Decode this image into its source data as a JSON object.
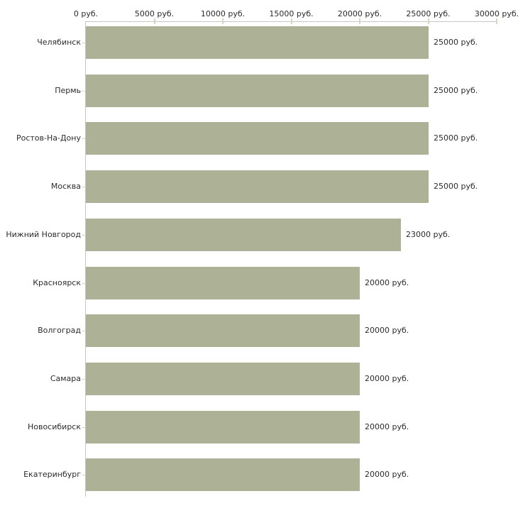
{
  "chart_data": {
    "type": "bar",
    "orientation": "horizontal",
    "title": "",
    "xlabel": "",
    "ylabel": "",
    "unit": "руб.",
    "xlim": [
      0,
      30000
    ],
    "grid": false,
    "legend": "none",
    "x_tick_values": [
      0,
      5000,
      10000,
      15000,
      20000,
      25000,
      30000
    ],
    "x_tick_labels": [
      "0 руб.",
      "5000 руб.",
      "10000 руб.",
      "15000 руб.",
      "20000 руб.",
      "25000 руб.",
      "30000 руб."
    ],
    "categories": [
      "Челябинск",
      "Пермь",
      "Ростов-На-Дону",
      "Москва",
      "Нижний Новгород",
      "Красноярск",
      "Волгоград",
      "Самара",
      "Новосибирск",
      "Екатеринбург"
    ],
    "values": [
      25000,
      25000,
      25000,
      25000,
      23000,
      20000,
      20000,
      20000,
      20000,
      20000
    ],
    "value_labels": [
      "25000 руб.",
      "25000 руб.",
      "25000 руб.",
      "25000 руб.",
      "23000 руб.",
      "20000 руб.",
      "20000 руб.",
      "20000 руб.",
      "20000 руб.",
      "20000 руб."
    ],
    "colors": {
      "bar": "#adb296",
      "axis_line": "#c6c6c6",
      "tick_mark": "#d6d8bd",
      "text": "#2b2b2b",
      "background": "#ffffff"
    }
  }
}
